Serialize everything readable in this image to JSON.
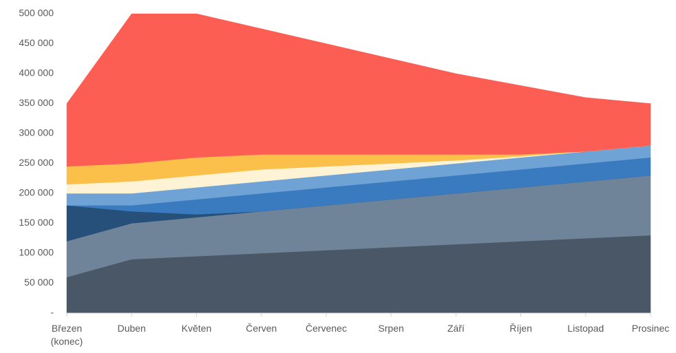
{
  "chart_data": {
    "type": "area",
    "stacked": true,
    "categories": [
      "Březen (konec)",
      "Duben",
      "Květen",
      "Červen",
      "Červenec",
      "Srpen",
      "Září",
      "Říjen",
      "Listopad",
      "Prosinec"
    ],
    "series": [
      {
        "color": "#4a5766",
        "values": [
          60000,
          90000,
          95000,
          100000,
          105000,
          110000,
          115000,
          120000,
          125000,
          130000
        ]
      },
      {
        "color": "#6f8399",
        "values": [
          60000,
          60000,
          65000,
          70000,
          75000,
          80000,
          85000,
          90000,
          95000,
          100000
        ]
      },
      {
        "color": "#26507a",
        "values": [
          60000,
          20000,
          5000,
          0,
          0,
          0,
          0,
          0,
          0,
          0
        ]
      },
      {
        "color": "#3a7abf",
        "values": [
          0,
          10000,
          25000,
          30000,
          30000,
          30000,
          30000,
          30000,
          30000,
          30000
        ]
      },
      {
        "color": "#6fa3d6",
        "values": [
          20000,
          20000,
          20000,
          20000,
          20000,
          20000,
          20000,
          20000,
          20000,
          20000
        ]
      },
      {
        "color": "#fff3d6",
        "values": [
          15000,
          20000,
          20000,
          20000,
          15000,
          10000,
          5000,
          2000,
          0,
          0
        ]
      },
      {
        "color": "#fbc04a",
        "values": [
          30000,
          30000,
          30000,
          25000,
          20000,
          15000,
          10000,
          3000,
          0,
          0
        ]
      },
      {
        "color": "#fd5e53",
        "values": [
          105000,
          250000,
          240000,
          210000,
          185000,
          160000,
          135000,
          115000,
          90000,
          70000
        ]
      }
    ],
    "ylim": [
      0,
      500000
    ],
    "yticks": [
      {
        "value": 0,
        "label": "-"
      },
      {
        "value": 50000,
        "label": "50 000"
      },
      {
        "value": 100000,
        "label": "100 000"
      },
      {
        "value": 150000,
        "label": "150 000"
      },
      {
        "value": 200000,
        "label": "200 000"
      },
      {
        "value": 250000,
        "label": "250 000"
      },
      {
        "value": 300000,
        "label": "300 000"
      },
      {
        "value": 350000,
        "label": "350 000"
      },
      {
        "value": 400000,
        "label": "400 000"
      },
      {
        "value": 450000,
        "label": "450 000"
      },
      {
        "value": 500000,
        "label": "500 000"
      }
    ],
    "grid": false
  }
}
